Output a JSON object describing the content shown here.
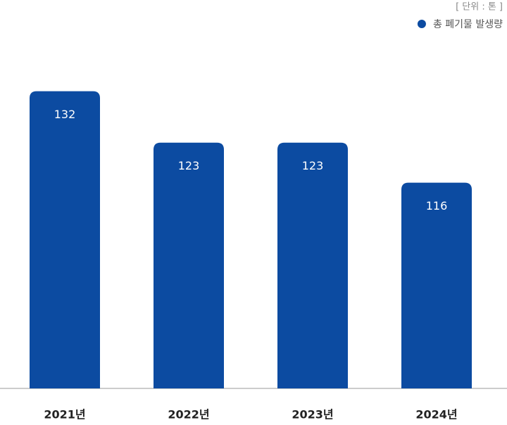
{
  "chart_data": {
    "type": "bar",
    "unit_note": "[ 단위 : 톤 ]",
    "categories": [
      "2021년",
      "2022년",
      "2023년",
      "2024년"
    ],
    "series": [
      {
        "name": "총 폐기물 발생량",
        "color": "#0c4ba1",
        "values": [
          132,
          123,
          123,
          116
        ]
      }
    ],
    "ylim": [
      80,
      137
    ],
    "legend": "top-right"
  }
}
